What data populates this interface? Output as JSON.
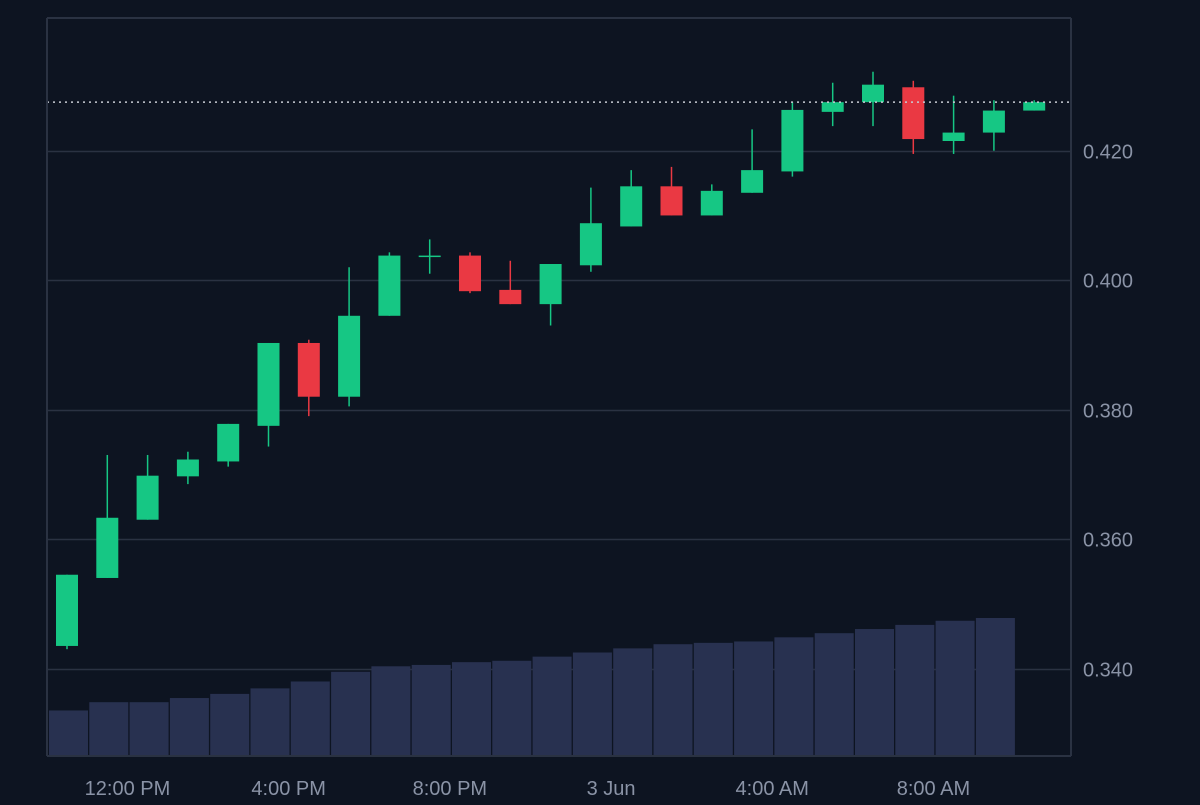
{
  "colors": {
    "background": "#0d1421",
    "grid": "#2a3242",
    "axis_text": "#8a93a6",
    "up": "#16c784",
    "down": "#ea3943",
    "volume": "#283150",
    "last_price_line": "#c8ccd4"
  },
  "chart_data": {
    "type": "candlestick",
    "price_axis": {
      "ticks": [
        "0.420",
        "0.400",
        "0.380",
        "0.360",
        "0.340"
      ],
      "tick_values": [
        0.42,
        0.4,
        0.38,
        0.36,
        0.34
      ],
      "ylim": [
        0.3265,
        0.4405
      ],
      "side": "right"
    },
    "time_axis": {
      "labels": [
        "12:00 PM",
        "4:00 PM",
        "8:00 PM",
        "3 Jun",
        "4:00 AM",
        "8:00 AM"
      ],
      "label_candle_index": [
        1.5,
        5.5,
        9.5,
        13.5,
        17.5,
        21.5
      ]
    },
    "last_price": 0.4275,
    "grid": true,
    "candles": [
      {
        "o": 0.3435,
        "h": 0.3545,
        "l": 0.343,
        "c": 0.3545
      },
      {
        "o": 0.354,
        "h": 0.373,
        "l": 0.354,
        "c": 0.3633
      },
      {
        "o": 0.363,
        "h": 0.373,
        "l": 0.363,
        "c": 0.3698
      },
      {
        "o": 0.3697,
        "h": 0.3735,
        "l": 0.3685,
        "c": 0.3723
      },
      {
        "o": 0.372,
        "h": 0.3778,
        "l": 0.3712,
        "c": 0.3778
      },
      {
        "o": 0.3775,
        "h": 0.3903,
        "l": 0.3743,
        "c": 0.3903
      },
      {
        "o": 0.3903,
        "h": 0.3908,
        "l": 0.379,
        "c": 0.382
      },
      {
        "o": 0.382,
        "h": 0.402,
        "l": 0.3805,
        "c": 0.3945
      },
      {
        "o": 0.3945,
        "h": 0.4043,
        "l": 0.3945,
        "c": 0.4038
      },
      {
        "o": 0.4038,
        "h": 0.4063,
        "l": 0.401,
        "c": 0.4038
      },
      {
        "o": 0.4038,
        "h": 0.4043,
        "l": 0.398,
        "c": 0.3983
      },
      {
        "o": 0.3985,
        "h": 0.403,
        "l": 0.3963,
        "c": 0.3963
      },
      {
        "o": 0.3963,
        "h": 0.4025,
        "l": 0.393,
        "c": 0.4025
      },
      {
        "o": 0.4023,
        "h": 0.4143,
        "l": 0.4013,
        "c": 0.4088
      },
      {
        "o": 0.4083,
        "h": 0.417,
        "l": 0.4083,
        "c": 0.4145
      },
      {
        "o": 0.4145,
        "h": 0.4175,
        "l": 0.41,
        "c": 0.41
      },
      {
        "o": 0.41,
        "h": 0.4148,
        "l": 0.41,
        "c": 0.4138
      },
      {
        "o": 0.4135,
        "h": 0.4233,
        "l": 0.4135,
        "c": 0.417
      },
      {
        "o": 0.4168,
        "h": 0.4275,
        "l": 0.416,
        "c": 0.4263
      },
      {
        "o": 0.426,
        "h": 0.4305,
        "l": 0.4238,
        "c": 0.4275
      },
      {
        "o": 0.4275,
        "h": 0.4322,
        "l": 0.4238,
        "c": 0.4302
      },
      {
        "o": 0.4298,
        "h": 0.4308,
        "l": 0.4195,
        "c": 0.4218
      },
      {
        "o": 0.4215,
        "h": 0.4285,
        "l": 0.4195,
        "c": 0.4228
      },
      {
        "o": 0.4228,
        "h": 0.4278,
        "l": 0.42,
        "c": 0.4262
      },
      {
        "o": 0.4262,
        "h": 0.4278,
        "l": 0.4262,
        "c": 0.4275
      }
    ],
    "volume_relative": [
      0.33,
      0.39,
      0.39,
      0.42,
      0.45,
      0.49,
      0.54,
      0.61,
      0.65,
      0.66,
      0.68,
      0.69,
      0.72,
      0.75,
      0.78,
      0.81,
      0.82,
      0.83,
      0.86,
      0.89,
      0.92,
      0.95,
      0.98,
      1.0
    ]
  }
}
